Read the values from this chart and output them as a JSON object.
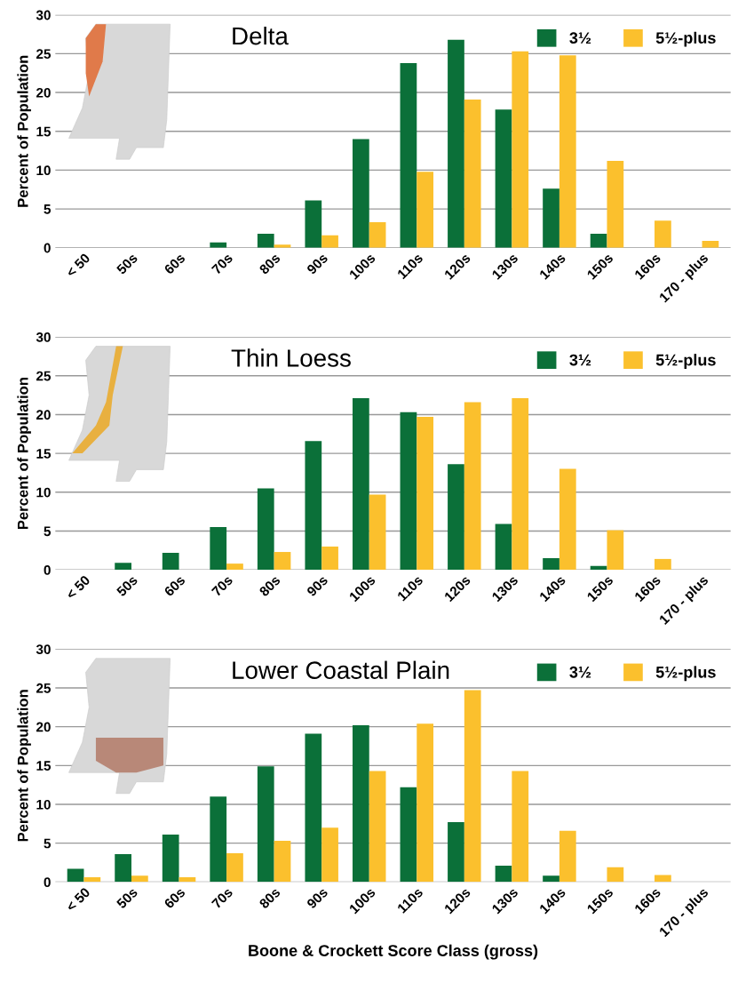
{
  "chart_data": [
    {
      "type": "bar",
      "title": "Delta",
      "ylabel": "Percent of Population",
      "categories": [
        "< 50",
        "50s",
        "60s",
        "70s",
        "80s",
        "90s",
        "100s",
        "110s",
        "120s",
        "130s",
        "140s",
        "150s",
        "160s",
        "170 - plus"
      ],
      "series": [
        {
          "name": "3½",
          "color": "#0b7039",
          "values": [
            0,
            0,
            0,
            0.7,
            1.8,
            6.1,
            14,
            23.8,
            26.8,
            17.8,
            7.6,
            1.8,
            0,
            0
          ]
        },
        {
          "name": "5½-plus",
          "color": "#fbc02d",
          "values": [
            0,
            0,
            0,
            0,
            0.4,
            1.6,
            3.3,
            9.8,
            19.1,
            25.3,
            24.8,
            11.2,
            3.5,
            0.9
          ]
        }
      ],
      "ylim": [
        0,
        30
      ],
      "yticks": [
        0,
        5,
        10,
        15,
        20,
        25,
        30
      ],
      "grid": "y",
      "legend": "top right"
    },
    {
      "type": "bar",
      "title": "Thin Loess",
      "ylabel": "Percent of Population",
      "categories": [
        "< 50",
        "50s",
        "60s",
        "70s",
        "80s",
        "90s",
        "100s",
        "110s",
        "120s",
        "130s",
        "140s",
        "150s",
        "160s",
        "170 - plus"
      ],
      "series": [
        {
          "name": "3½",
          "color": "#0b7039",
          "values": [
            0,
            0.9,
            2.2,
            5.5,
            10.5,
            16.6,
            22.1,
            20.3,
            13.6,
            5.9,
            1.5,
            0.5,
            0,
            0
          ]
        },
        {
          "name": "5½-plus",
          "color": "#fbc02d",
          "values": [
            0,
            0,
            0,
            0.8,
            2.3,
            3.0,
            9.7,
            19.7,
            21.6,
            22.1,
            13.0,
            5.1,
            1.4,
            0
          ]
        }
      ],
      "ylim": [
        0,
        30
      ],
      "yticks": [
        0,
        5,
        10,
        15,
        20,
        25,
        30
      ],
      "grid": "y",
      "legend": "top right"
    },
    {
      "type": "bar",
      "title": "Lower Coastal Plain",
      "ylabel": "Percent of Population",
      "xlabel": "Boone & Crockett Score Class (gross)",
      "categories": [
        "< 50",
        "50s",
        "60s",
        "70s",
        "80s",
        "90s",
        "100s",
        "110s",
        "120s",
        "130s",
        "140s",
        "150s",
        "160s",
        "170 - plus"
      ],
      "series": [
        {
          "name": "3½",
          "color": "#0b7039",
          "values": [
            1.7,
            3.6,
            6.1,
            11.0,
            14.9,
            19.1,
            20.2,
            12.2,
            7.7,
            2.1,
            0.8,
            0,
            0,
            0
          ]
        },
        {
          "name": "5½-plus",
          "color": "#fbc02d",
          "values": [
            0.6,
            0.8,
            0.6,
            3.7,
            5.3,
            7.0,
            14.3,
            20.4,
            24.7,
            14.3,
            6.6,
            1.9,
            0.9,
            0
          ]
        }
      ],
      "ylim": [
        0,
        30
      ],
      "yticks": [
        0,
        5,
        10,
        15,
        20,
        25,
        30
      ],
      "grid": "y",
      "legend": "top right"
    }
  ]
}
